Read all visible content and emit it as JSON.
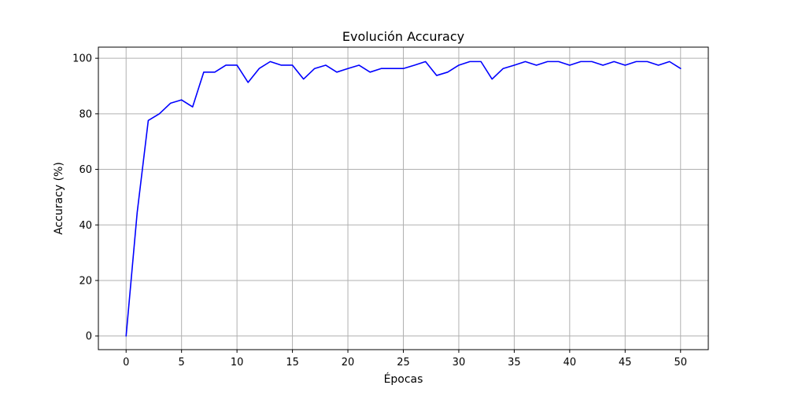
{
  "chart_data": {
    "type": "line",
    "title": "Evolución Accuracy",
    "xlabel": "Épocas",
    "ylabel": "Accuracy (%)",
    "xlim": [
      -2.5,
      52.5
    ],
    "ylim": [
      -4.9,
      104.0
    ],
    "x_ticks": [
      0,
      5,
      10,
      15,
      20,
      25,
      30,
      35,
      40,
      45,
      50
    ],
    "y_ticks": [
      0,
      20,
      40,
      60,
      80,
      100
    ],
    "grid": true,
    "legend": "none",
    "series": [
      {
        "color": "#0000ff",
        "x": [
          0,
          1,
          2,
          3,
          4,
          5,
          6,
          7,
          8,
          9,
          10,
          11,
          12,
          13,
          14,
          15,
          16,
          17,
          18,
          19,
          20,
          21,
          22,
          23,
          24,
          25,
          26,
          27,
          28,
          29,
          30,
          31,
          32,
          33,
          34,
          35,
          36,
          37,
          38,
          39,
          40,
          41,
          42,
          43,
          44,
          45,
          46,
          47,
          48,
          49,
          50
        ],
        "values": [
          0.0,
          44.5,
          77.6,
          80.0,
          83.8,
          85.0,
          82.5,
          95.0,
          95.0,
          97.5,
          97.5,
          91.3,
          96.3,
          98.8,
          97.5,
          97.5,
          92.5,
          96.3,
          97.5,
          95.0,
          96.3,
          97.5,
          95.0,
          96.3,
          96.3,
          96.3,
          97.5,
          98.8,
          93.8,
          95.0,
          97.5,
          98.8,
          98.8,
          92.5,
          96.3,
          97.5,
          98.8,
          97.5,
          98.8,
          98.8,
          97.5,
          98.8,
          98.8,
          97.5,
          98.8,
          97.5,
          98.8,
          98.8,
          97.5,
          98.8,
          96.3
        ]
      }
    ]
  }
}
